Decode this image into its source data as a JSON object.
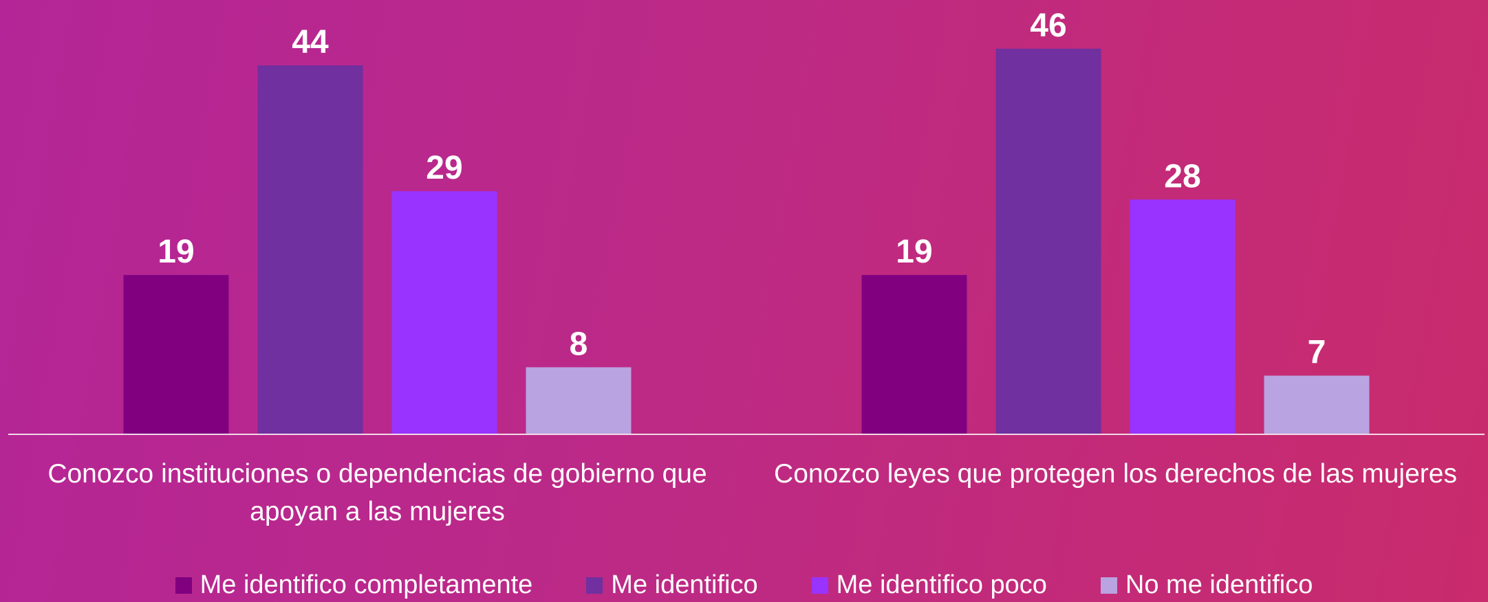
{
  "chart_data": {
    "type": "bar",
    "categories": [
      "Conozco instituciones o dependencias de gobierno que apoyan a las mujeres",
      "Conozco leyes que protegen los derechos de las mujeres"
    ],
    "series": [
      {
        "name": "Me identifico completamente",
        "color": "#800080",
        "values": [
          19,
          19
        ]
      },
      {
        "name": "Me identifico",
        "color": "#7030A0",
        "values": [
          44,
          46
        ]
      },
      {
        "name": "Me identifico poco",
        "color": "#9933FF",
        "values": [
          29,
          28
        ]
      },
      {
        "name": "No me identifico",
        "color": "#B9A3E0",
        "values": [
          8,
          7
        ]
      }
    ],
    "ylim": [
      0,
      50
    ],
    "legend": "bottom"
  }
}
